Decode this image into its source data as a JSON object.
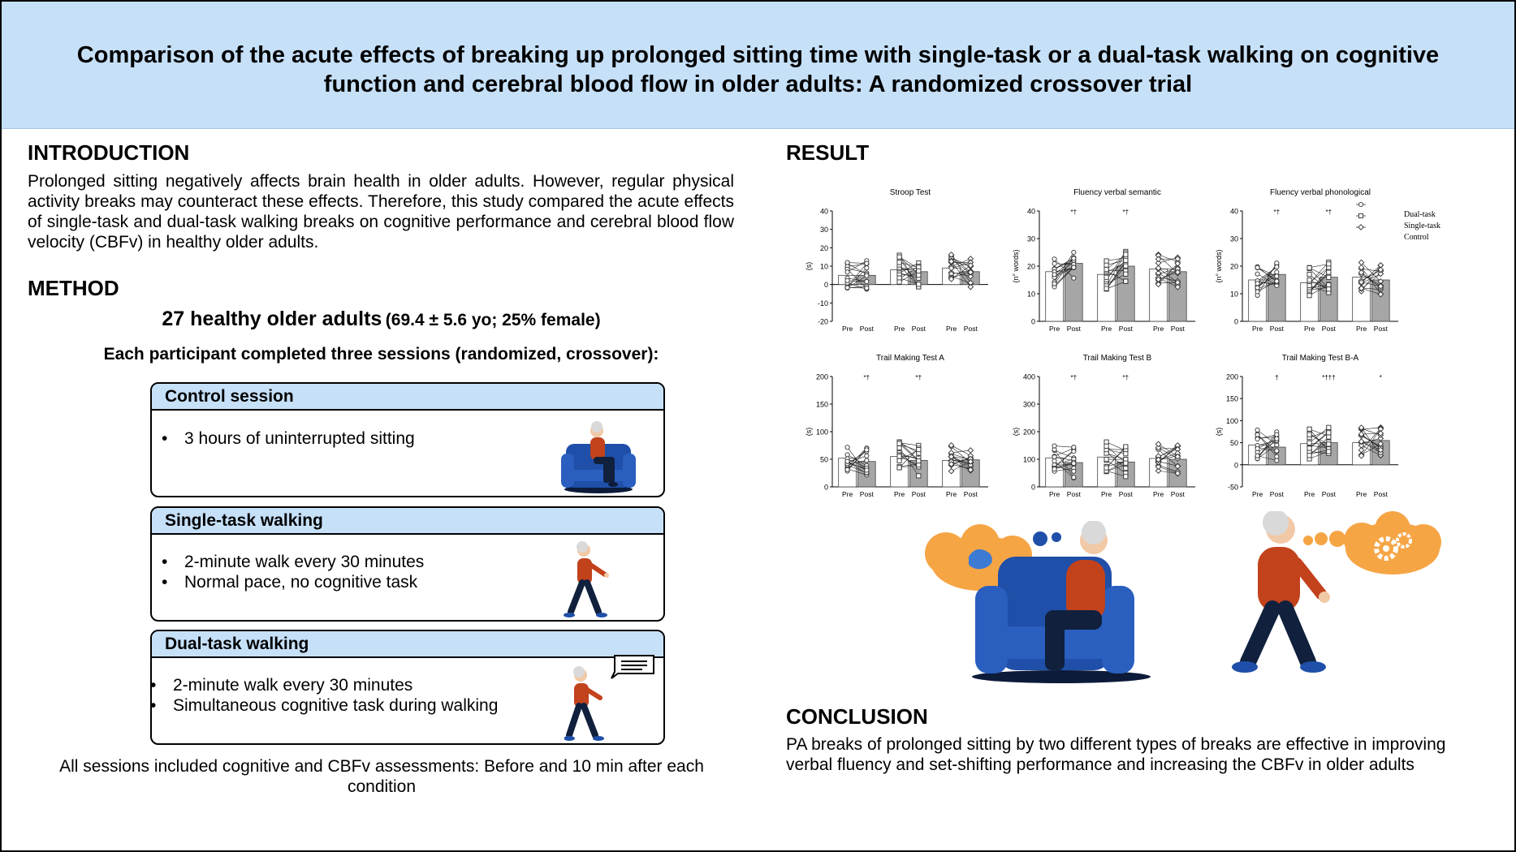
{
  "title": "Comparison of the acute effects of breaking up prolonged sitting time with single-task or a dual-task walking on cognitive function and cerebral blood flow in older adults: A randomized crossover trial",
  "introduction": {
    "heading": "INTRODUCTION",
    "text": "Prolonged sitting negatively affects brain health in older adults. However, regular physical activity breaks may counteract these effects. Therefore, this study compared the acute effects of single-task and dual-task walking breaks on cognitive performance and cerebral blood flow velocity (CBFv) in healthy older adults."
  },
  "method": {
    "heading": "METHOD",
    "participants": "27 healthy older adults",
    "participants_detail": "(69.4 ± 5.6 yo; 25% female)",
    "sessions_intro": "Each participant completed three sessions (randomized, crossover):",
    "sessions": [
      {
        "title": "Control session",
        "bullets": [
          "3 hours of uninterrupted sitting"
        ]
      },
      {
        "title": "Single-task walking",
        "bullets": [
          "2-minute walk every 30 minutes",
          "Normal pace, no cognitive task"
        ]
      },
      {
        "title": "Dual-task walking",
        "bullets": [
          "2-minute walk every 30 minutes",
          "Simultaneous cognitive task during walking"
        ]
      }
    ],
    "footnote": "All sessions included cognitive and CBFv assessments: Before and 10 min after each condition"
  },
  "result": {
    "heading": "RESULT"
  },
  "conclusion": {
    "heading": "CONCLUSION",
    "text": "PA breaks of prolonged sitting by two different types of breaks are effective in improving verbal fluency and set-shifting performance and increasing the CBFv in older adults"
  },
  "colors": {
    "header_bg": "#c6e0f8",
    "bar_gray": "#a6a6a6",
    "chair_blue": "#1f4fa8",
    "shirt_red": "#c2421c",
    "thought_orange": "#f6a545"
  },
  "chart_data": [
    {
      "type": "bar",
      "title": "Stroop Test",
      "ylabel": "(s)",
      "ylim": [
        -20,
        40
      ],
      "yticks": [
        "40",
        "30",
        "20",
        "10",
        "0",
        "-10",
        "-20"
      ],
      "groups": [
        "Pre",
        "Post",
        "Pre",
        "Post",
        "Pre",
        "Post"
      ],
      "series": [
        {
          "name": "Dual-task",
          "values": [
            5,
            5
          ]
        },
        {
          "name": "Single-task",
          "values": [
            8,
            7
          ]
        },
        {
          "name": "Control",
          "values": [
            9,
            7
          ]
        }
      ],
      "annotations": []
    },
    {
      "type": "bar",
      "title": "Fluency verbal semantic",
      "ylabel": "(n° words)",
      "ylim": [
        0,
        40
      ],
      "yticks": [
        "40",
        "30",
        "20",
        "10",
        "0"
      ],
      "groups": [
        "Pre",
        "Post",
        "Pre",
        "Post",
        "Pre",
        "Post"
      ],
      "series": [
        {
          "name": "Dual-task",
          "values": [
            18,
            21
          ]
        },
        {
          "name": "Single-task",
          "values": [
            17,
            20
          ]
        },
        {
          "name": "Control",
          "values": [
            19,
            18
          ]
        }
      ],
      "annotations": [
        "*†",
        "*†",
        ""
      ]
    },
    {
      "type": "bar",
      "title": "Fluency verbal phonological",
      "ylabel": "(n° words)",
      "ylim": [
        0,
        40
      ],
      "yticks": [
        "40",
        "30",
        "20",
        "10",
        "0"
      ],
      "groups": [
        "Pre",
        "Post",
        "Pre",
        "Post",
        "Pre",
        "Post"
      ],
      "series": [
        {
          "name": "Dual-task",
          "values": [
            15,
            17
          ]
        },
        {
          "name": "Single-task",
          "values": [
            14,
            16
          ]
        },
        {
          "name": "Control",
          "values": [
            16,
            15
          ]
        }
      ],
      "annotations": [
        "*†",
        "*†",
        ""
      ],
      "legend": [
        "Dual-task",
        "Single-task",
        "Control"
      ]
    },
    {
      "type": "bar",
      "title": "Trail Making Test A",
      "ylabel": "(s)",
      "ylim": [
        0,
        200
      ],
      "yticks": [
        "200",
        "150",
        "100",
        "50",
        "0"
      ],
      "groups": [
        "Pre",
        "Post",
        "Pre",
        "Post",
        "Pre",
        "Post"
      ],
      "series": [
        {
          "name": "Dual-task",
          "values": [
            52,
            46
          ]
        },
        {
          "name": "Single-task",
          "values": [
            55,
            48
          ]
        },
        {
          "name": "Control",
          "values": [
            48,
            49
          ]
        }
      ],
      "annotations": [
        "*†",
        "*†",
        ""
      ]
    },
    {
      "type": "bar",
      "title": "Trail Making Test B",
      "ylabel": "(s)",
      "ylim": [
        0,
        400
      ],
      "yticks": [
        "400",
        "300",
        "200",
        "100",
        "0"
      ],
      "groups": [
        "Pre",
        "Post",
        "Pre",
        "Post",
        "Pre",
        "Post"
      ],
      "series": [
        {
          "name": "Dual-task",
          "values": [
            105,
            88
          ]
        },
        {
          "name": "Single-task",
          "values": [
            108,
            90
          ]
        },
        {
          "name": "Control",
          "values": [
            103,
            100
          ]
        }
      ],
      "annotations": [
        "*†",
        "*†",
        ""
      ]
    },
    {
      "type": "bar",
      "title": "Trail Making Test B-A",
      "ylabel": "(s)",
      "ylim": [
        -50,
        200
      ],
      "yticks": [
        "200",
        "150",
        "100",
        "50",
        "0",
        "-50"
      ],
      "groups": [
        "Pre",
        "Post",
        "Pre",
        "Post",
        "Pre",
        "Post"
      ],
      "series": [
        {
          "name": "Dual-task",
          "values": [
            45,
            40
          ]
        },
        {
          "name": "Single-task",
          "values": [
            48,
            50
          ]
        },
        {
          "name": "Control",
          "values": [
            50,
            55
          ]
        }
      ],
      "annotations": [
        "†",
        "*†††",
        "*"
      ]
    }
  ]
}
